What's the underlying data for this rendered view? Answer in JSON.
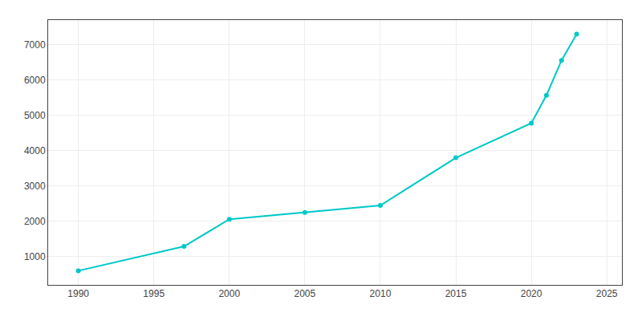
{
  "chart_data": {
    "type": "line",
    "x": [
      1990,
      1997,
      2000,
      2005,
      2010,
      2015,
      2020,
      2021,
      2022,
      2023
    ],
    "values": [
      600,
      1290,
      2060,
      2250,
      2450,
      3800,
      4780,
      5570,
      6560,
      7300
    ],
    "color": "#00C8C8",
    "marker": "circle",
    "xlim": [
      1988,
      2026
    ],
    "ylim": [
      200,
      7700
    ],
    "xticks": [
      1990,
      1995,
      2000,
      2005,
      2010,
      2015,
      2020,
      2025
    ],
    "yticks": [
      1000,
      2000,
      3000,
      4000,
      5000,
      6000,
      7000
    ],
    "grid": true
  }
}
